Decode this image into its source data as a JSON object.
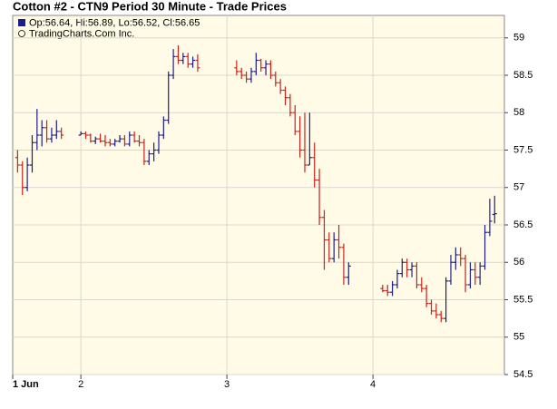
{
  "chart_data": {
    "type": "ohlc",
    "title": "Cotton #2 - CTN9 Period 30 Minute - Trade Prices",
    "legend_text": "Op:56.64, Hi:56.89, Lo:56.52, Cl:56.65",
    "source": "TradingCharts.Com Inc.",
    "up_color": "#1c1c8a",
    "down_color": "#c8231e",
    "grid": true,
    "xlim": [
      0,
      101
    ],
    "xticks": [
      {
        "value": 0,
        "label": "1 Jun"
      },
      {
        "value": 14,
        "label": "2"
      },
      {
        "value": 44,
        "label": "3"
      },
      {
        "value": 74,
        "label": "4"
      }
    ],
    "ylim": [
      54.5,
      59.3
    ],
    "yticks": [
      54.5,
      55,
      55.5,
      56,
      56.5,
      57,
      57.5,
      58,
      58.5,
      59
    ],
    "x": [
      1,
      2,
      3,
      4,
      5,
      6,
      7,
      8,
      9,
      10,
      14,
      15,
      16,
      17,
      18,
      19,
      20,
      21,
      22,
      23,
      24,
      25,
      26,
      27,
      28,
      29,
      30,
      31,
      32,
      33,
      34,
      35,
      36,
      37,
      38,
      46,
      47,
      48,
      49,
      50,
      51,
      52,
      53,
      54,
      55,
      56,
      57,
      58,
      59,
      60,
      61,
      62,
      63,
      64,
      65,
      66,
      67,
      68,
      69,
      76,
      77,
      78,
      79,
      80,
      81,
      82,
      83,
      84,
      85,
      86,
      87,
      88,
      89,
      90,
      91,
      92,
      93,
      94,
      95,
      96,
      97,
      98,
      99
    ],
    "open": [
      57.4,
      57.3,
      57.0,
      57.3,
      57.6,
      57.7,
      57.8,
      57.65,
      57.7,
      57.75,
      57.7,
      57.72,
      57.7,
      57.62,
      57.65,
      57.62,
      57.6,
      57.58,
      57.62,
      57.65,
      57.58,
      57.7,
      57.62,
      57.6,
      57.35,
      57.45,
      57.5,
      57.7,
      57.9,
      58.5,
      58.75,
      58.7,
      58.75,
      58.65,
      58.7,
      58.6,
      58.55,
      58.5,
      58.45,
      58.55,
      58.7,
      58.6,
      58.65,
      58.5,
      58.4,
      58.3,
      58.2,
      58.0,
      57.75,
      57.5,
      57.3,
      57.4,
      57.1,
      56.6,
      56.3,
      56.05,
      56.3,
      56.2,
      55.8,
      55.65,
      55.62,
      55.6,
      55.7,
      55.85,
      56.0,
      55.9,
      55.95,
      55.7,
      55.65,
      55.45,
      55.35,
      55.3,
      55.25,
      55.75,
      56.0,
      56.1,
      56.05,
      55.7,
      55.9,
      55.8,
      55.95,
      56.4,
      56.64
    ],
    "high": [
      57.5,
      57.35,
      57.4,
      57.7,
      58.05,
      57.9,
      57.9,
      57.8,
      57.9,
      57.8,
      57.75,
      57.75,
      57.72,
      57.68,
      57.72,
      57.7,
      57.65,
      57.65,
      57.7,
      57.7,
      57.75,
      57.75,
      57.7,
      57.65,
      57.5,
      57.6,
      57.75,
      57.95,
      58.55,
      58.85,
      58.9,
      58.8,
      58.8,
      58.75,
      58.78,
      58.7,
      58.6,
      58.55,
      58.6,
      58.8,
      58.72,
      58.7,
      58.7,
      58.55,
      58.45,
      58.35,
      58.25,
      58.1,
      57.95,
      58.0,
      58.0,
      57.6,
      57.25,
      56.7,
      56.4,
      56.4,
      56.5,
      56.25,
      56.0,
      55.7,
      55.7,
      55.75,
      55.9,
      56.05,
      56.05,
      56.0,
      56.0,
      55.8,
      55.7,
      55.5,
      55.45,
      55.35,
      55.8,
      56.1,
      56.2,
      56.2,
      56.1,
      56.0,
      56.0,
      56.0,
      56.5,
      56.85,
      56.89
    ],
    "low": [
      57.2,
      56.9,
      56.95,
      57.2,
      57.5,
      57.55,
      57.6,
      57.6,
      57.65,
      57.65,
      57.7,
      57.65,
      57.6,
      57.58,
      57.6,
      57.55,
      57.55,
      57.55,
      57.6,
      57.55,
      57.55,
      57.6,
      57.55,
      57.3,
      57.3,
      57.35,
      57.45,
      57.65,
      57.85,
      58.45,
      58.65,
      58.65,
      58.6,
      58.6,
      58.55,
      58.5,
      58.45,
      58.4,
      58.4,
      58.5,
      58.55,
      58.5,
      58.45,
      58.35,
      58.25,
      58.1,
      57.95,
      57.7,
      57.4,
      57.2,
      57.3,
      57.0,
      56.5,
      55.9,
      56.0,
      56.0,
      56.05,
      55.7,
      55.7,
      55.6,
      55.55,
      55.55,
      55.65,
      55.8,
      55.8,
      55.8,
      55.65,
      55.6,
      55.4,
      55.3,
      55.25,
      55.2,
      55.2,
      55.7,
      55.9,
      55.95,
      55.6,
      55.65,
      55.7,
      55.7,
      55.9,
      56.35,
      56.52
    ],
    "close": [
      57.3,
      57.0,
      57.3,
      57.6,
      57.7,
      57.8,
      57.65,
      57.7,
      57.75,
      57.7,
      57.72,
      57.7,
      57.62,
      57.65,
      57.62,
      57.6,
      57.58,
      57.62,
      57.65,
      57.58,
      57.7,
      57.62,
      57.6,
      57.35,
      57.45,
      57.5,
      57.7,
      57.9,
      58.5,
      58.75,
      58.7,
      58.75,
      58.65,
      58.7,
      58.6,
      58.55,
      58.5,
      58.45,
      58.55,
      58.7,
      58.6,
      58.65,
      58.5,
      58.4,
      58.3,
      58.2,
      58.0,
      57.75,
      57.5,
      57.3,
      57.4,
      57.1,
      56.6,
      56.3,
      56.05,
      56.3,
      56.2,
      55.8,
      55.95,
      55.62,
      55.6,
      55.7,
      55.85,
      56.0,
      55.9,
      55.95,
      55.7,
      55.65,
      55.45,
      55.35,
      55.3,
      55.25,
      55.75,
      56.0,
      56.1,
      56.05,
      55.7,
      55.9,
      55.8,
      55.95,
      56.4,
      56.55,
      56.65
    ]
  }
}
